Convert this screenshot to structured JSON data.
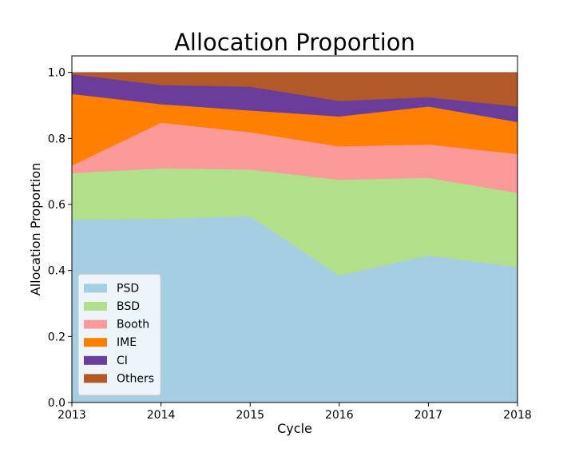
{
  "chart_data": {
    "type": "area",
    "stacked": true,
    "title": "Allocation Proportion",
    "xlabel": "Cycle",
    "ylabel": "Allocation Proportion",
    "x": [
      2013,
      2014,
      2015,
      2016,
      2017,
      2018
    ],
    "xlim": [
      2013,
      2018
    ],
    "ylim": [
      0,
      1.05
    ],
    "xticks": [
      "2013",
      "2014",
      "2015",
      "2016",
      "2017",
      "2018"
    ],
    "yticks": [
      "0.0",
      "0.2",
      "0.4",
      "0.6",
      "0.8",
      "1.0"
    ],
    "grid": false,
    "legend_position": "lower-left",
    "series": [
      {
        "name": "PSD",
        "color": "#a6cee3",
        "values": [
          0.555,
          0.557,
          0.565,
          0.385,
          0.446,
          0.411
        ]
      },
      {
        "name": "BSD",
        "color": "#b2df8a",
        "values": [
          0.14,
          0.153,
          0.141,
          0.29,
          0.235,
          0.224
        ]
      },
      {
        "name": "Booth",
        "color": "#fb9a99",
        "values": [
          0.023,
          0.138,
          0.113,
          0.101,
          0.101,
          0.118
        ]
      },
      {
        "name": "IME",
        "color": "#ff7f00",
        "values": [
          0.217,
          0.056,
          0.066,
          0.091,
          0.115,
          0.097
        ]
      },
      {
        "name": "CI",
        "color": "#6a3d9a",
        "values": [
          0.06,
          0.058,
          0.072,
          0.047,
          0.028,
          0.047
        ]
      },
      {
        "name": "Others",
        "color": "#b15928",
        "values": [
          0.005,
          0.038,
          0.043,
          0.086,
          0.075,
          0.103
        ]
      }
    ]
  }
}
